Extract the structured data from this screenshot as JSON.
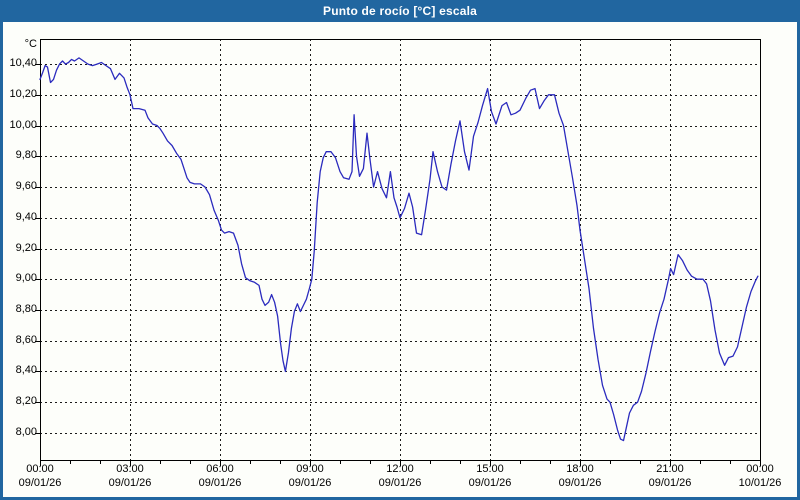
{
  "window": {
    "title": "Punto de rocío [°C] escala"
  },
  "colors": {
    "titlebar_bg": "#2166A0",
    "titlebar_text": "#FFFFFF",
    "window_border": "#2166A0",
    "content_bg": "#FDFEFA",
    "plot_bg": "#FDFEFA",
    "plot_border": "#000000",
    "grid_color": "#1A1A1A",
    "tick_color": "#000000",
    "label_color": "#000000",
    "line_color": "#2B2BBE"
  },
  "chart_data": {
    "type": "line",
    "title": "Punto de rocío [°C] escala",
    "unit_label": "°C",
    "xlabel": "",
    "ylabel": "°C",
    "grid": "dotted",
    "legend_position": "none",
    "ylim": [
      7.824,
      10.563
    ],
    "xlim_hours": [
      0,
      24
    ],
    "x_minor_tick_hours": 1,
    "y_ticks": [
      {
        "value": 10.4,
        "label": "10,40"
      },
      {
        "value": 10.2,
        "label": "10,20"
      },
      {
        "value": 10.0,
        "label": "10,00"
      },
      {
        "value": 9.8,
        "label": "9,80"
      },
      {
        "value": 9.6,
        "label": "9,60"
      },
      {
        "value": 9.4,
        "label": "9,40"
      },
      {
        "value": 9.2,
        "label": "9,20"
      },
      {
        "value": 9.0,
        "label": "9,00"
      },
      {
        "value": 8.8,
        "label": "8,80"
      },
      {
        "value": 8.6,
        "label": "8,60"
      },
      {
        "value": 8.4,
        "label": "8,40"
      },
      {
        "value": 8.2,
        "label": "8,20"
      },
      {
        "value": 8.0,
        "label": "8,00"
      }
    ],
    "x_ticks": [
      {
        "hour": 0,
        "time": "00:00",
        "date": "09/01/26"
      },
      {
        "hour": 3,
        "time": "03:00",
        "date": "09/01/26"
      },
      {
        "hour": 6,
        "time": "06:00",
        "date": "09/01/26"
      },
      {
        "hour": 9,
        "time": "09:00",
        "date": "09/01/26"
      },
      {
        "hour": 12,
        "time": "12:00",
        "date": "09/01/26"
      },
      {
        "hour": 15,
        "time": "15:00",
        "date": "09/01/26"
      },
      {
        "hour": 18,
        "time": "18:00",
        "date": "09/01/26"
      },
      {
        "hour": 21,
        "time": "21:00",
        "date": "09/01/26"
      },
      {
        "hour": 24,
        "time": "00:00",
        "date": "10/01/26"
      }
    ],
    "series": [
      {
        "name": "Punto de rocío",
        "color": "#2B2BBE",
        "points_hour_value": [
          [
            0,
            10.3
          ],
          [
            0.08,
            10.34
          ],
          [
            0.17,
            10.39
          ],
          [
            0.25,
            10.38
          ],
          [
            0.35,
            10.28
          ],
          [
            0.45,
            10.3
          ],
          [
            0.55,
            10.36
          ],
          [
            0.65,
            10.4
          ],
          [
            0.75,
            10.42
          ],
          [
            0.85,
            10.4
          ],
          [
            0.95,
            10.41
          ],
          [
            1.05,
            10.43
          ],
          [
            1.15,
            10.42
          ],
          [
            1.3,
            10.44
          ],
          [
            1.45,
            10.42
          ],
          [
            1.6,
            10.4
          ],
          [
            1.75,
            10.39
          ],
          [
            1.9,
            10.4
          ],
          [
            2.05,
            10.41
          ],
          [
            2.2,
            10.39
          ],
          [
            2.35,
            10.37
          ],
          [
            2.5,
            10.3
          ],
          [
            2.65,
            10.34
          ],
          [
            2.8,
            10.31
          ],
          [
            2.9,
            10.25
          ],
          [
            3.0,
            10.2
          ],
          [
            3.1,
            10.11
          ],
          [
            3.3,
            10.11
          ],
          [
            3.5,
            10.1
          ],
          [
            3.6,
            10.05
          ],
          [
            3.75,
            10.01
          ],
          [
            3.9,
            10.0
          ],
          [
            4.0,
            9.98
          ],
          [
            4.1,
            9.95
          ],
          [
            4.25,
            9.9
          ],
          [
            4.4,
            9.87
          ],
          [
            4.55,
            9.82
          ],
          [
            4.7,
            9.78
          ],
          [
            4.8,
            9.72
          ],
          [
            4.9,
            9.66
          ],
          [
            5.0,
            9.63
          ],
          [
            5.15,
            9.62
          ],
          [
            5.35,
            9.62
          ],
          [
            5.5,
            9.6
          ],
          [
            5.65,
            9.55
          ],
          [
            5.8,
            9.45
          ],
          [
            5.95,
            9.38
          ],
          [
            6.05,
            9.32
          ],
          [
            6.15,
            9.3
          ],
          [
            6.3,
            9.31
          ],
          [
            6.45,
            9.3
          ],
          [
            6.6,
            9.22
          ],
          [
            6.72,
            9.1
          ],
          [
            6.85,
            9.01
          ],
          [
            7.0,
            8.99
          ],
          [
            7.15,
            8.98
          ],
          [
            7.3,
            8.96
          ],
          [
            7.4,
            8.87
          ],
          [
            7.5,
            8.83
          ],
          [
            7.62,
            8.85
          ],
          [
            7.72,
            8.9
          ],
          [
            7.82,
            8.85
          ],
          [
            7.92,
            8.76
          ],
          [
            8.02,
            8.58
          ],
          [
            8.1,
            8.47
          ],
          [
            8.18,
            8.4
          ],
          [
            8.28,
            8.52
          ],
          [
            8.38,
            8.68
          ],
          [
            8.48,
            8.79
          ],
          [
            8.58,
            8.84
          ],
          [
            8.68,
            8.79
          ],
          [
            8.78,
            8.83
          ],
          [
            8.88,
            8.87
          ],
          [
            8.98,
            8.94
          ],
          [
            9.06,
            9.0
          ],
          [
            9.14,
            9.18
          ],
          [
            9.24,
            9.5
          ],
          [
            9.34,
            9.7
          ],
          [
            9.44,
            9.79
          ],
          [
            9.54,
            9.83
          ],
          [
            9.7,
            9.83
          ],
          [
            9.85,
            9.79
          ],
          [
            10.0,
            9.7
          ],
          [
            10.12,
            9.66
          ],
          [
            10.3,
            9.65
          ],
          [
            10.4,
            9.7
          ],
          [
            10.47,
            10.07
          ],
          [
            10.55,
            9.8
          ],
          [
            10.65,
            9.67
          ],
          [
            10.78,
            9.72
          ],
          [
            10.9,
            9.95
          ],
          [
            11.0,
            9.78
          ],
          [
            11.12,
            9.6
          ],
          [
            11.25,
            9.7
          ],
          [
            11.4,
            9.59
          ],
          [
            11.55,
            9.53
          ],
          [
            11.68,
            9.7
          ],
          [
            11.8,
            9.53
          ],
          [
            11.9,
            9.47
          ],
          [
            12.0,
            9.4
          ],
          [
            12.15,
            9.46
          ],
          [
            12.3,
            9.56
          ],
          [
            12.42,
            9.47
          ],
          [
            12.55,
            9.3
          ],
          [
            12.72,
            9.29
          ],
          [
            12.85,
            9.45
          ],
          [
            13.0,
            9.65
          ],
          [
            13.1,
            9.83
          ],
          [
            13.25,
            9.7
          ],
          [
            13.4,
            9.6
          ],
          [
            13.55,
            9.58
          ],
          [
            13.7,
            9.75
          ],
          [
            13.85,
            9.9
          ],
          [
            14.0,
            10.03
          ],
          [
            14.15,
            9.83
          ],
          [
            14.3,
            9.71
          ],
          [
            14.45,
            9.93
          ],
          [
            14.6,
            10.02
          ],
          [
            14.75,
            10.13
          ],
          [
            14.92,
            10.24
          ],
          [
            15.05,
            10.09
          ],
          [
            15.2,
            10.01
          ],
          [
            15.4,
            10.13
          ],
          [
            15.55,
            10.15
          ],
          [
            15.7,
            10.07
          ],
          [
            15.85,
            10.08
          ],
          [
            16.0,
            10.1
          ],
          [
            16.2,
            10.18
          ],
          [
            16.35,
            10.23
          ],
          [
            16.5,
            10.24
          ],
          [
            16.65,
            10.11
          ],
          [
            16.8,
            10.16
          ],
          [
            16.95,
            10.2
          ],
          [
            17.15,
            10.2
          ],
          [
            17.3,
            10.08
          ],
          [
            17.45,
            10.0
          ],
          [
            17.6,
            9.83
          ],
          [
            17.75,
            9.66
          ],
          [
            17.9,
            9.48
          ],
          [
            18.0,
            9.32
          ],
          [
            18.15,
            9.13
          ],
          [
            18.3,
            8.94
          ],
          [
            18.45,
            8.68
          ],
          [
            18.6,
            8.48
          ],
          [
            18.75,
            8.31
          ],
          [
            18.9,
            8.22
          ],
          [
            19.0,
            8.2
          ],
          [
            19.12,
            8.12
          ],
          [
            19.25,
            8.02
          ],
          [
            19.35,
            7.96
          ],
          [
            19.45,
            7.95
          ],
          [
            19.55,
            8.04
          ],
          [
            19.65,
            8.13
          ],
          [
            19.78,
            8.18
          ],
          [
            19.92,
            8.2
          ],
          [
            20.05,
            8.27
          ],
          [
            20.2,
            8.39
          ],
          [
            20.35,
            8.53
          ],
          [
            20.5,
            8.66
          ],
          [
            20.65,
            8.78
          ],
          [
            20.8,
            8.87
          ],
          [
            20.95,
            9.0
          ],
          [
            21.02,
            9.07
          ],
          [
            21.12,
            9.03
          ],
          [
            21.27,
            9.16
          ],
          [
            21.42,
            9.12
          ],
          [
            21.57,
            9.06
          ],
          [
            21.72,
            9.02
          ],
          [
            21.9,
            9.0
          ],
          [
            22.1,
            9.0
          ],
          [
            22.22,
            8.97
          ],
          [
            22.35,
            8.86
          ],
          [
            22.5,
            8.67
          ],
          [
            22.65,
            8.52
          ],
          [
            22.82,
            8.44
          ],
          [
            22.95,
            8.49
          ],
          [
            23.1,
            8.5
          ],
          [
            23.25,
            8.56
          ],
          [
            23.4,
            8.69
          ],
          [
            23.55,
            8.82
          ],
          [
            23.7,
            8.92
          ],
          [
            23.85,
            8.99
          ],
          [
            23.93,
            9.02
          ]
        ]
      }
    ]
  }
}
